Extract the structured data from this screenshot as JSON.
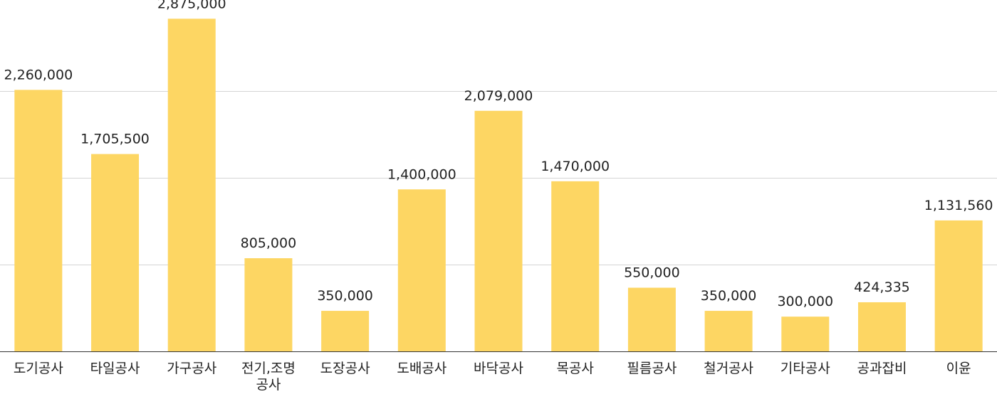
{
  "chart_data": {
    "type": "bar",
    "categories": [
      "도기공사",
      "타일공사",
      "가구공사",
      "전기,조명 공사",
      "도장공사",
      "도배공사",
      "바닥공사",
      "목공사",
      "필름공사",
      "철거공사",
      "기타공사",
      "공과잡비",
      "이윤"
    ],
    "category_lines": [
      [
        "도기공사"
      ],
      [
        "타일공사"
      ],
      [
        "가구공사"
      ],
      [
        "전기,조명",
        "공사"
      ],
      [
        "도장공사"
      ],
      [
        "도배공사"
      ],
      [
        "바닥공사"
      ],
      [
        "목공사"
      ],
      [
        "필름공사"
      ],
      [
        "철거공사"
      ],
      [
        "기타공사"
      ],
      [
        "공과잡비"
      ],
      [
        "이윤"
      ]
    ],
    "values": [
      2260000,
      1705500,
      2875000,
      805000,
      350000,
      1400000,
      2079000,
      1470000,
      550000,
      350000,
      300000,
      424335,
      1131560
    ],
    "data_labels": [
      "2,260,000",
      "1,705,500",
      "2,875,000",
      "805,000",
      "350,000",
      "1,400,000",
      "2,079,000",
      "1,470,000",
      "550,000",
      "350,000",
      "300,000",
      "424,335",
      "1,131,560"
    ],
    "ylim": [
      0,
      3000000
    ],
    "gridlines": [
      750000,
      1500000,
      2250000
    ],
    "grid": true,
    "legend": "none",
    "bar_color": "#fdd663",
    "title": "",
    "xlabel": "",
    "ylabel": ""
  }
}
